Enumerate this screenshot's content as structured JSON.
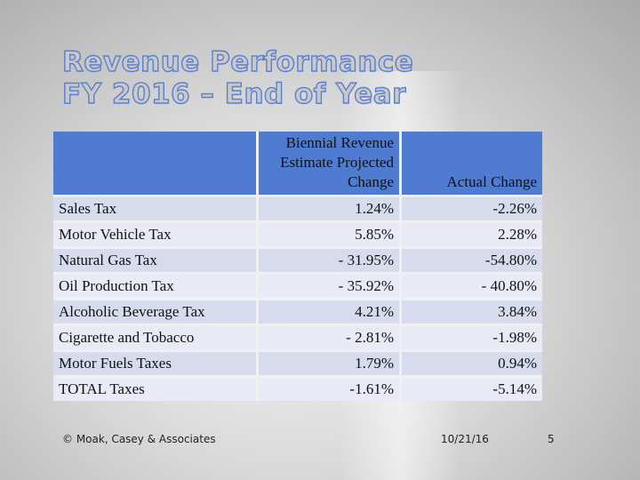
{
  "title": {
    "line1": "Revenue Performance",
    "line2": "FY 2016 – End of Year"
  },
  "table": {
    "columns": [
      "Biennial Revenue Estimate Projected Change",
      "Actual Change"
    ],
    "rows": [
      [
        "Sales Tax",
        "1.24%",
        "-2.26%"
      ],
      [
        "Motor Vehicle Tax",
        "5.85%",
        "2.28%"
      ],
      [
        "Natural Gas Tax",
        "- 31.95%",
        "-54.80%"
      ],
      [
        "Oil Production Tax",
        "- 35.92%",
        "- 40.80%"
      ],
      [
        "Alcoholic Beverage Tax",
        "4.21%",
        "3.84%"
      ],
      [
        "Cigarette and Tobacco",
        "- 2.81%",
        "-1.98%"
      ],
      [
        "Motor Fuels Taxes",
        "1.79%",
        "0.94%"
      ],
      [
        "TOTAL Taxes",
        "-1.61%",
        "-5.14%"
      ]
    ]
  },
  "footer": {
    "copyright": "© Moak, Casey & Associates",
    "date": "10/21/16",
    "page": "5"
  }
}
